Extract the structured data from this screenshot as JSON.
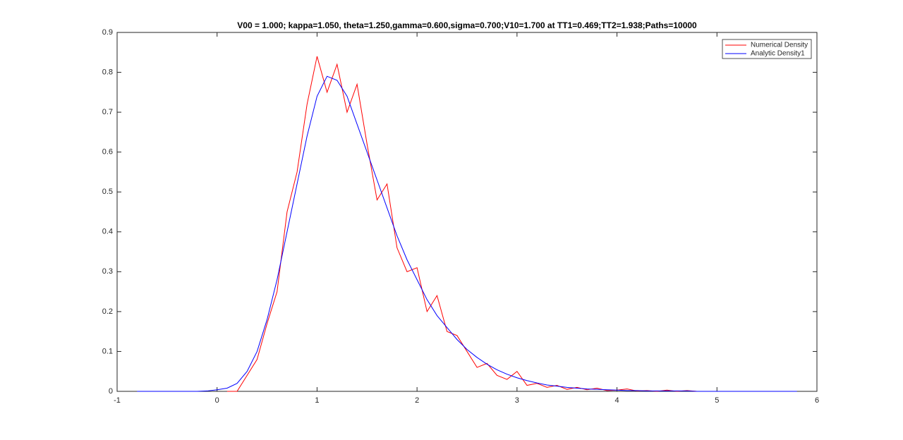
{
  "chart_data": {
    "type": "line",
    "title": "V00 = 1.000; kappa=1.050, theta=1.250,gamma=0.600,sigma=0.700;V10=1.700 at TT1=0.469;TT2=1.938;Paths=10000",
    "x": [
      -0.8,
      -0.7,
      -0.6,
      -0.5,
      -0.4,
      -0.3,
      -0.2,
      -0.1,
      0,
      0.1,
      0.2,
      0.3,
      0.4,
      0.5,
      0.6,
      0.7,
      0.8,
      0.9,
      1,
      1.1,
      1.2,
      1.3,
      1.4,
      1.5,
      1.6,
      1.7,
      1.8,
      1.9,
      2,
      2.1,
      2.2,
      2.3,
      2.4,
      2.5,
      2.6,
      2.7,
      2.8,
      2.9,
      3,
      3.1,
      3.2,
      3.3,
      3.4,
      3.5,
      3.6,
      3.7,
      3.8,
      3.9,
      4,
      4.1,
      4.2,
      4.3,
      4.4,
      4.5,
      4.6,
      4.7,
      4.8,
      4.9,
      5,
      5.1,
      5.2,
      5.3,
      5.4,
      5.5,
      5.6,
      5.7,
      5.8
    ],
    "series": [
      {
        "name": "Numerical Density",
        "color": "#ff0000",
        "values": [
          null,
          null,
          null,
          null,
          null,
          null,
          null,
          null,
          null,
          0,
          0,
          0.04,
          0.08,
          0.17,
          0.25,
          0.45,
          0.55,
          0.72,
          0.84,
          0.75,
          0.82,
          0.7,
          0.77,
          0.62,
          0.48,
          0.52,
          0.36,
          0.3,
          0.31,
          0.2,
          0.24,
          0.15,
          0.14,
          0.1,
          0.06,
          0.07,
          0.04,
          0.03,
          0.05,
          0.015,
          0.02,
          0.01,
          0.015,
          0.005,
          0.01,
          0.004,
          0.008,
          0.002,
          0.003,
          0.006,
          0.001,
          0.002,
          0,
          0.003,
          0,
          0.002,
          0,
          null,
          null,
          null,
          null,
          null,
          null,
          null,
          null,
          null,
          null
        ]
      },
      {
        "name": "Analytic Density1",
        "color": "#0000ff",
        "values": [
          0,
          0,
          0,
          0,
          0,
          0,
          0,
          0.001,
          0.004,
          0.008,
          0.02,
          0.05,
          0.1,
          0.18,
          0.28,
          0.4,
          0.52,
          0.64,
          0.74,
          0.79,
          0.78,
          0.74,
          0.67,
          0.6,
          0.53,
          0.46,
          0.39,
          0.33,
          0.28,
          0.23,
          0.19,
          0.16,
          0.13,
          0.105,
          0.085,
          0.068,
          0.054,
          0.043,
          0.034,
          0.027,
          0.021,
          0.016,
          0.013,
          0.01,
          0.008,
          0.006,
          0.005,
          0.004,
          0.003,
          0.002,
          0.002,
          0.001,
          0.001,
          0.001,
          0.001,
          0.001,
          0,
          0,
          0,
          0,
          0,
          0,
          0,
          0,
          0,
          0,
          0
        ]
      }
    ],
    "xlim": [
      -1,
      6
    ],
    "xticks": [
      -1,
      0,
      1,
      2,
      3,
      4,
      5,
      6
    ],
    "ylim": [
      0,
      0.9
    ],
    "yticks": [
      0,
      0.1,
      0.2,
      0.3,
      0.4,
      0.5,
      0.6,
      0.7,
      0.8,
      0.9
    ],
    "grid": false,
    "legend": "top-right"
  }
}
